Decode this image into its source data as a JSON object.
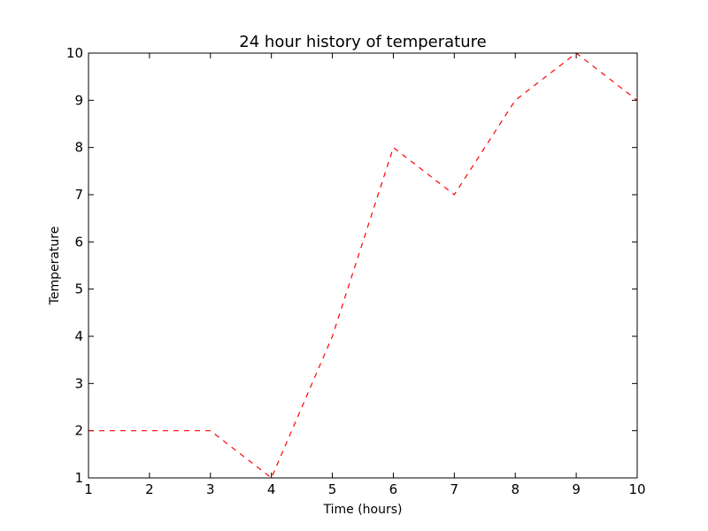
{
  "chart_data": {
    "type": "line",
    "title": "24 hour history of temperature",
    "xlabel": "Time (hours)",
    "ylabel": "Temperature",
    "xlim": [
      1,
      10
    ],
    "ylim": [
      1,
      10
    ],
    "xticks": [
      "1",
      "2",
      "3",
      "4",
      "5",
      "6",
      "7",
      "8",
      "9",
      "10"
    ],
    "yticks": [
      "1",
      "2",
      "3",
      "4",
      "5",
      "6",
      "7",
      "8",
      "9",
      "10"
    ],
    "grid": false,
    "series": [
      {
        "x": [
          1,
          2,
          3,
          4,
          5,
          6,
          7,
          8,
          9,
          10
        ],
        "values": [
          2,
          2,
          2,
          1,
          4,
          8,
          7,
          9,
          10,
          9
        ],
        "color": "#ff0000",
        "line_style": "dashed"
      }
    ]
  }
}
